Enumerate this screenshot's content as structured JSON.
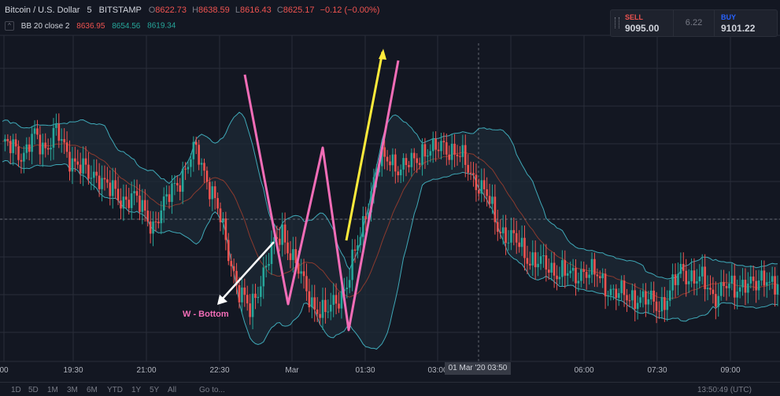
{
  "header": {
    "symbol": "Bitcoin / U.S. Dollar",
    "interval": "5",
    "exchange": "BITSTAMP",
    "ohlc": [
      {
        "label": "O",
        "value": "8622.73"
      },
      {
        "label": "H",
        "value": "8638.59"
      },
      {
        "label": "L",
        "value": "8616.43"
      },
      {
        "label": "C",
        "value": "8625.17"
      }
    ],
    "change": "−0.12 (−0.00%)"
  },
  "indicator": {
    "chevron": "^",
    "name": "BB 20 close 2",
    "values": [
      "8636.95",
      "8654.56",
      "8619.34"
    ]
  },
  "trade_panel": {
    "sell_label": "SELL",
    "sell_price": "9095.00",
    "spread": "6.22",
    "buy_label": "BUY",
    "buy_price": "9101.22"
  },
  "annotation": {
    "pattern_label": "W - Bottom"
  },
  "crosshair": {
    "date_label": "01 Mar '20   03:50"
  },
  "time_axis": [
    "00",
    "19:30",
    "21:00",
    "22:30",
    "Mar",
    "01:30",
    "03:00",
    "06:00",
    "07:30",
    "09:00"
  ],
  "range_buttons": [
    "1D",
    "5D",
    "1M",
    "3M",
    "6M",
    "YTD",
    "1Y",
    "5Y",
    "All"
  ],
  "goto_label": "Go to...",
  "clock": "13:50:49 (UTC)",
  "colors": {
    "background": "#131722",
    "up_candle": "#26a69a",
    "down_candle": "#ef5350",
    "bollinger_band": "#3fa9b8",
    "basis_line": "#8b3a2e",
    "w_pattern": "#f26db7",
    "breakout_arrow": "#ffeb3b",
    "pointer_arrow": "#ffffff"
  },
  "chart_data": {
    "type": "candlestick",
    "xlabel": "",
    "ylabel": "",
    "ylim": [
      7.5,
      105
    ],
    "close_path": [
      [
        0,
        70
      ],
      [
        4,
        72
      ],
      [
        8,
        68
      ],
      [
        12,
        74
      ],
      [
        16,
        71
      ],
      [
        20,
        75
      ],
      [
        24,
        69
      ],
      [
        28,
        66
      ],
      [
        32,
        62
      ],
      [
        36,
        63
      ],
      [
        40,
        58
      ],
      [
        44,
        55
      ],
      [
        48,
        57
      ],
      [
        52,
        52
      ],
      [
        56,
        48
      ],
      [
        60,
        53
      ],
      [
        64,
        60
      ],
      [
        68,
        64
      ],
      [
        72,
        70
      ],
      [
        76,
        62
      ],
      [
        80,
        52
      ],
      [
        84,
        40
      ],
      [
        88,
        28
      ],
      [
        92,
        22
      ],
      [
        96,
        32
      ],
      [
        100,
        40
      ],
      [
        104,
        46
      ],
      [
        108,
        38
      ],
      [
        112,
        30
      ],
      [
        116,
        24
      ],
      [
        120,
        21
      ],
      [
        124,
        26
      ],
      [
        128,
        30
      ],
      [
        132,
        42
      ],
      [
        136,
        55
      ],
      [
        140,
        66
      ],
      [
        144,
        68
      ],
      [
        148,
        64
      ],
      [
        152,
        66
      ],
      [
        156,
        70
      ],
      [
        160,
        69
      ],
      [
        164,
        72
      ],
      [
        168,
        69
      ],
      [
        172,
        66
      ],
      [
        176,
        61
      ],
      [
        180,
        56
      ],
      [
        184,
        48
      ],
      [
        188,
        44
      ],
      [
        192,
        42
      ],
      [
        196,
        38
      ],
      [
        200,
        36
      ],
      [
        204,
        35
      ],
      [
        208,
        34
      ],
      [
        212,
        32
      ],
      [
        216,
        35
      ],
      [
        220,
        33
      ],
      [
        224,
        30
      ],
      [
        228,
        28
      ],
      [
        232,
        26
      ],
      [
        236,
        27
      ],
      [
        240,
        25
      ],
      [
        244,
        24
      ],
      [
        248,
        28
      ],
      [
        252,
        34
      ],
      [
        256,
        33
      ],
      [
        260,
        31
      ],
      [
        264,
        27
      ],
      [
        268,
        30
      ],
      [
        272,
        28
      ],
      [
        276,
        32
      ],
      [
        280,
        29
      ],
      [
        284,
        33
      ],
      [
        288,
        30
      ]
    ]
  }
}
